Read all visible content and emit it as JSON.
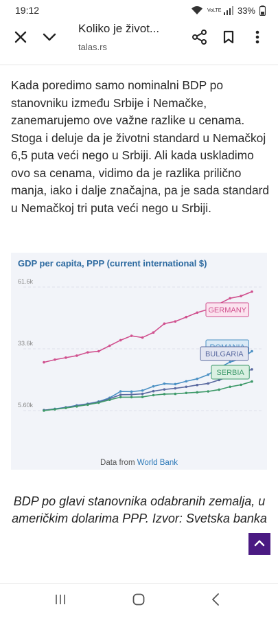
{
  "status_bar": {
    "time": "19:12",
    "network": "VoLTE",
    "battery": "33%"
  },
  "browser": {
    "title": "Koliko je život...",
    "url": "talas.rs"
  },
  "article": {
    "paragraph": "Kada poredimo samo nominalni BDP po stanovniku između Srbije i Nemačke, zanemarujemo ove važne razlike u cenama. Stoga i deluje da je životni standard u Nemačkoj 6,5 puta veći nego u Srbiji. Ali kada uskladimo ovo sa cenama, vidimo da je razlika prilično manja, iako i dalje značajna, pa je sada standard u Nemačkoj tri puta veći nego u Srbiji."
  },
  "chart_data": {
    "type": "line",
    "title": "GDP per capita, PPP (current international $)",
    "y_ticks": [
      "61.6k",
      "33.6k",
      "5.60k"
    ],
    "ylim": [
      5600,
      61600
    ],
    "grid": true,
    "source_prefix": "Data from",
    "source_link": "World Bank",
    "x": [
      0,
      1,
      2,
      3,
      4,
      5,
      6,
      7,
      8,
      9,
      10,
      11,
      12,
      13,
      14,
      15,
      16,
      17,
      18,
      19
    ],
    "series": [
      {
        "name": "GERMANY",
        "color": "#d0508e",
        "label_bg": "#fbe3ef",
        "values": [
          27500,
          28700,
          29600,
          30500,
          32000,
          32500,
          35000,
          37500,
          39500,
          38700,
          41000,
          45000,
          46000,
          48000,
          50000,
          51500,
          54000,
          56500,
          57500,
          59500
        ]
      },
      {
        "name": "ROMANIA",
        "color": "#4a90c4",
        "label_bg": "#dbeaf6",
        "values": [
          5800,
          6400,
          7100,
          8000,
          8700,
          9700,
          11400,
          14300,
          14200,
          14700,
          16600,
          17800,
          17600,
          18900,
          20000,
          21900,
          25000,
          27600,
          29000,
          32500
        ]
      },
      {
        "name": "BULGARIA",
        "color": "#5a6aa0",
        "label_bg": "#e2e5f1",
        "values": [
          5800,
          6300,
          7000,
          7800,
          8600,
          9500,
          11000,
          12800,
          12900,
          13200,
          14400,
          15200,
          15700,
          16400,
          17200,
          17900,
          19500,
          21000,
          22500,
          24300
        ]
      },
      {
        "name": "SERBIA",
        "color": "#3f9a6a",
        "label_bg": "#daf0e2",
        "values": [
          5600,
          6200,
          6800,
          7500,
          8300,
          9200,
          10500,
          11700,
          11700,
          11800,
          12600,
          13100,
          13200,
          13600,
          13900,
          14300,
          15100,
          16400,
          17300,
          18800
        ]
      }
    ]
  },
  "caption": "BDP po glavi stanovnika odabranih zemalja, u američkim dolarima PPP. Izvor: Svetska banka",
  "icons": {
    "close": "close-icon",
    "chevron": "chevron-down-icon",
    "share": "share-icon",
    "bookmark": "bookmark-icon",
    "more": "more-vert-icon",
    "scroll_top": "chevron-up-icon",
    "nav_recents": "recents-icon",
    "nav_home": "home-icon",
    "nav_back": "back-icon"
  },
  "colors": {
    "chart_title": "#2d6aa0",
    "scroll_button": "#4a1a82"
  }
}
